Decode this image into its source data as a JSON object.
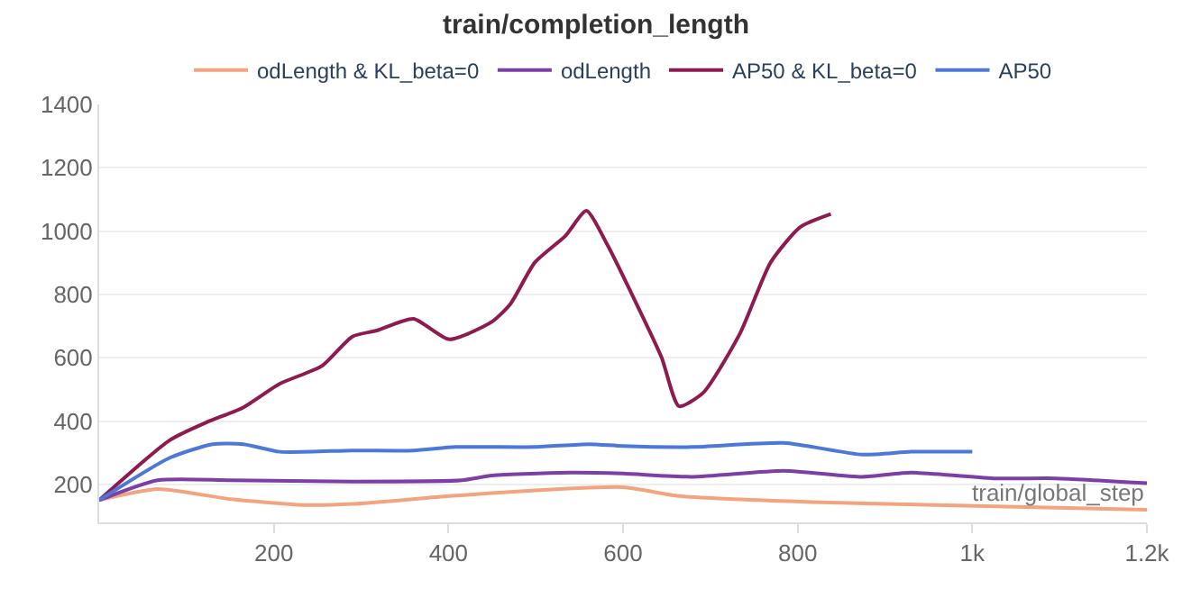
{
  "chart_data": {
    "type": "line",
    "title": "train/completion_length",
    "xlabel": "train/global_step",
    "xlim": [
      0,
      1200
    ],
    "xticks": [
      200,
      400,
      600,
      800,
      {
        "value": 1000,
        "label": "1k"
      },
      {
        "value": 1200,
        "label": "1.2k"
      }
    ],
    "ylim": [
      80,
      1400
    ],
    "yticks": [
      200,
      400,
      600,
      800,
      1000,
      1200,
      1400
    ],
    "grid": "y",
    "legend": "top",
    "marker": "none",
    "line_style": "solid",
    "series": [
      {
        "name": "odLength & KL_beta=0",
        "color": "#f2a47e",
        "x": [
          0,
          67,
          151,
          234,
          290,
          401,
          499,
          600,
          665,
          817,
          958,
          1200
        ],
        "values": [
          150,
          185,
          153,
          135,
          138,
          163,
          181,
          191,
          163,
          144,
          135,
          120
        ]
      },
      {
        "name": "odLength",
        "color": "#7b3fa6",
        "x": [
          0,
          67,
          151,
          290,
          415,
          450,
          540,
          600,
          679,
          784,
          874,
          930,
          1027,
          1096,
          1200
        ],
        "values": [
          150,
          213,
          213,
          209,
          213,
          228,
          237,
          234,
          224,
          243,
          224,
          237,
          219,
          219,
          204
        ]
      },
      {
        "name": "AP50 & KL_beta=0",
        "color": "#8e1b4f",
        "x": [
          0,
          81,
          123,
          165,
          207,
          255,
          290,
          318,
          360,
          401,
          450,
          471,
          499,
          534,
          558,
          582,
          609,
          644,
          664,
          692,
          734,
          769,
          803,
          838
        ],
        "values": [
          150,
          340,
          396,
          443,
          518,
          574,
          667,
          686,
          723,
          658,
          714,
          770,
          901,
          985,
          1064,
          957,
          807,
          602,
          447,
          490,
          677,
          901,
          1013,
          1054
        ]
      },
      {
        "name": "AP50",
        "color": "#4c78d8",
        "x": [
          0,
          81,
          130,
          165,
          207,
          290,
          360,
          408,
          499,
          561,
          600,
          679,
          784,
          874,
          930,
          1000
        ],
        "values": [
          150,
          284,
          327,
          327,
          303,
          307,
          307,
          318,
          318,
          327,
          321,
          318,
          331,
          294,
          303,
          303
        ]
      }
    ]
  }
}
